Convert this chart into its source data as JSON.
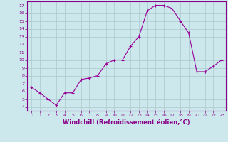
{
  "x": [
    0,
    1,
    2,
    3,
    4,
    5,
    6,
    7,
    8,
    9,
    10,
    11,
    12,
    13,
    14,
    15,
    16,
    17,
    18,
    19,
    20,
    21,
    22,
    23
  ],
  "y": [
    6.5,
    5.8,
    5.0,
    4.2,
    5.8,
    5.8,
    7.5,
    7.7,
    8.0,
    9.5,
    10.0,
    10.0,
    11.8,
    13.0,
    16.3,
    17.0,
    17.0,
    16.6,
    15.0,
    13.5,
    8.5,
    8.5,
    9.2,
    10.0
  ],
  "line_color": "#990099",
  "marker": "+",
  "markersize": 3,
  "linewidth": 0.8,
  "xlabel": "Windchill (Refroidissement éolien,°C)",
  "xlim": [
    -0.5,
    23.5
  ],
  "ylim": [
    3.5,
    17.5
  ],
  "yticks": [
    4,
    5,
    6,
    7,
    8,
    9,
    10,
    11,
    12,
    13,
    14,
    15,
    16,
    17
  ],
  "xticks": [
    0,
    1,
    2,
    3,
    4,
    5,
    6,
    7,
    8,
    9,
    10,
    11,
    12,
    13,
    14,
    15,
    16,
    17,
    18,
    19,
    20,
    21,
    22,
    23
  ],
  "background_color": "#cce8ec",
  "grid_color": "#b0cdd1",
  "tick_color": "#880088",
  "label_color": "#880088",
  "tick_fontsize": 4.5,
  "xlabel_fontsize": 6.0
}
